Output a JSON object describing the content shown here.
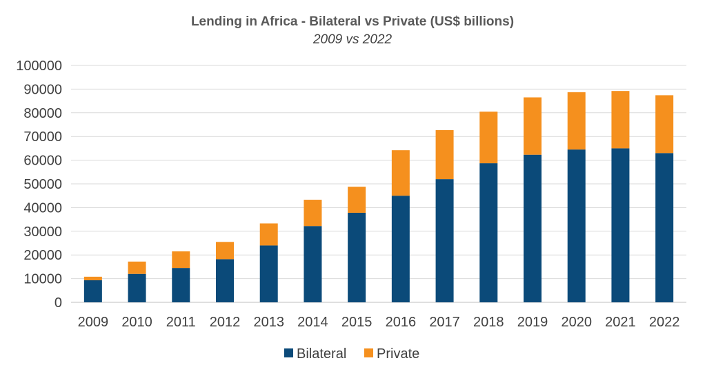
{
  "chart_data": {
    "type": "bar",
    "stacked": true,
    "title": "Lending in Africa - Bilateral vs Private (US$ billions)",
    "subtitle": "2009 vs 2022",
    "xlabel": "",
    "ylabel": "",
    "ylim": [
      0,
      100000
    ],
    "yticks": [
      0,
      10000,
      20000,
      30000,
      40000,
      50000,
      60000,
      70000,
      80000,
      90000,
      100000
    ],
    "grid": true,
    "legend_position": "bottom",
    "categories": [
      "2009",
      "2010",
      "2011",
      "2012",
      "2013",
      "2014",
      "2015",
      "2016",
      "2017",
      "2018",
      "2019",
      "2020",
      "2021",
      "2022"
    ],
    "series": [
      {
        "name": "Bilateral",
        "color": "#0b4a79",
        "values": [
          9300,
          12000,
          14500,
          18200,
          24000,
          32200,
          37800,
          45000,
          52000,
          58700,
          62300,
          64500,
          65000,
          63000
        ]
      },
      {
        "name": "Private",
        "color": "#f5901e",
        "values": [
          1500,
          5200,
          7000,
          7300,
          9300,
          11100,
          11000,
          19200,
          20700,
          21800,
          24200,
          24200,
          24200,
          24400
        ]
      }
    ]
  }
}
